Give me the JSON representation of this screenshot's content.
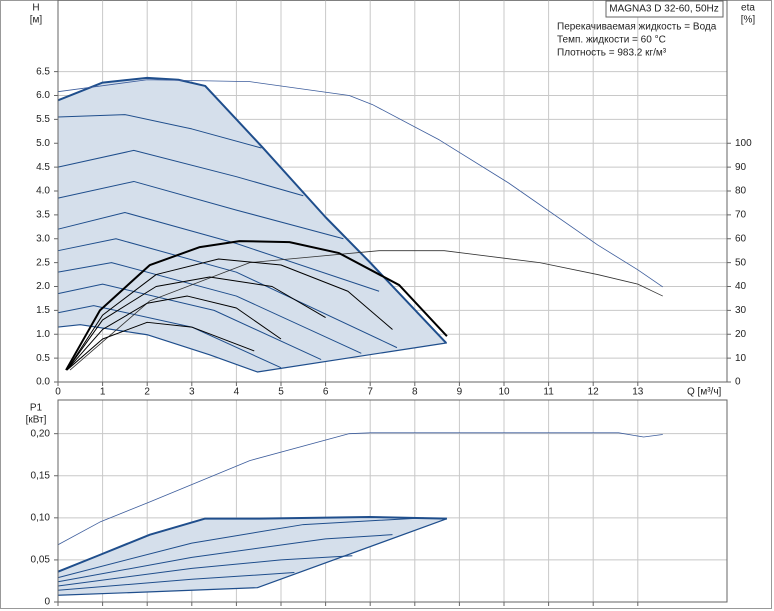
{
  "chart_data": [
    {
      "type": "line",
      "y_label": "H",
      "y_unit": "[м]",
      "y2_label": "eta",
      "y2_unit": "[%]",
      "x_label": "Q [м³/ч]",
      "legend_box": "MAGNA3 D 32-60, 50Hz",
      "annotations": [
        "Перекачиваемая жидкость = Вода",
        "Темп. жидкости = 60 °C",
        "Плотность = 983.2 кг/м³"
      ],
      "xlim": [
        0,
        15
      ],
      "xticks": [
        0,
        1,
        2,
        3,
        4,
        5,
        6,
        7,
        8,
        9,
        10,
        11,
        12,
        13
      ],
      "ylim": [
        0,
        8
      ],
      "yticks": [
        {
          "value": 0,
          "label": "0.0"
        },
        0.5,
        {
          "value": 1,
          "label": "1.0"
        },
        1.5,
        {
          "value": 2,
          "label": "2.0"
        },
        2.5,
        {
          "value": 3,
          "label": "3.0"
        },
        3.5,
        {
          "value": 4,
          "label": "4.0"
        },
        4.5,
        {
          "value": 5,
          "label": "5.0"
        },
        5.5,
        {
          "value": 6,
          "label": "6.0"
        },
        6.5
      ],
      "y2lim": [
        0,
        160
      ],
      "y2ticks": [
        0,
        10,
        20,
        30,
        40,
        50,
        60,
        70,
        80,
        90,
        100
      ],
      "grid": true,
      "shading_color": "#d5dfeb",
      "series": [
        {
          "color": "#1f4e8c",
          "linewidth": 2,
          "bound": "upper",
          "x": [
            0,
            1,
            2,
            2.7,
            3.3,
            4.6,
            6,
            7,
            8.7
          ],
          "values": [
            5.9,
            6.27,
            6.37,
            6.33,
            6.2,
            4.9,
            3.45,
            2.5,
            0.82
          ]
        },
        {
          "color": "#1f4e8c",
          "linewidth": 1.2,
          "bound": "lower",
          "x": [
            0,
            0.5,
            2,
            3.4,
            4.47,
            8.72
          ],
          "values": [
            1.15,
            1.2,
            0.99,
            0.57,
            0.21,
            0.82
          ]
        },
        {
          "color": "#3d5d9c",
          "linewidth": 0.8,
          "x": [
            0,
            2,
            4.3,
            6.53,
            7.05,
            8.55,
            10.1,
            12.1,
            13,
            13.56
          ],
          "values": [
            6.08,
            6.33,
            6.29,
            6.0,
            5.81,
            5.07,
            4.17,
            2.87,
            2.35,
            1.99
          ]
        },
        {
          "color": "#1f4e8c",
          "linewidth": 1,
          "x": [
            0,
            1.5,
            3,
            4.56
          ],
          "values": [
            5.55,
            5.6,
            5.3,
            4.9
          ]
        },
        {
          "color": "#1f4e8c",
          "linewidth": 1,
          "x": [
            0,
            1.7,
            4,
            5.5
          ],
          "values": [
            4.5,
            4.85,
            4.3,
            3.9
          ]
        },
        {
          "color": "#1f4e8c",
          "linewidth": 1,
          "x": [
            0,
            1.7,
            4,
            6.4
          ],
          "values": [
            3.85,
            4.2,
            3.6,
            3.0
          ]
        },
        {
          "color": "#1f4e8c",
          "linewidth": 1,
          "x": [
            0,
            1.5,
            4,
            7.2
          ],
          "values": [
            3.2,
            3.55,
            2.9,
            1.9
          ]
        },
        {
          "color": "#1f4e8c",
          "linewidth": 1,
          "x": [
            0,
            1.3,
            4,
            7.6
          ],
          "values": [
            2.75,
            3.0,
            2.3,
            0.72
          ]
        },
        {
          "color": "#1f4e8c",
          "linewidth": 1,
          "x": [
            0,
            1.2,
            4,
            6.8
          ],
          "values": [
            2.3,
            2.5,
            1.8,
            0.6
          ]
        },
        {
          "color": "#1f4e8c",
          "linewidth": 1,
          "x": [
            0,
            1,
            3.5,
            5.9
          ],
          "values": [
            1.85,
            2.05,
            1.5,
            0.47
          ]
        },
        {
          "color": "#1f4e8c",
          "linewidth": 1,
          "x": [
            0,
            0.8,
            3,
            5
          ],
          "values": [
            1.45,
            1.6,
            1.15,
            0.3
          ]
        },
        {
          "color": "#333333",
          "linewidth": 0.8,
          "axis": "y2",
          "x": [
            0.27,
            2.06,
            4.3,
            7.2,
            8.66,
            10.8,
            12.1,
            13,
            13.56
          ],
          "values": [
            5,
            34,
            50,
            55,
            55,
            50,
            45,
            41,
            36
          ]
        },
        {
          "color": "#000000",
          "linewidth": 2,
          "axis": "y2",
          "x": [
            0.18,
            0.94,
            2.06,
            3.18,
            4.07,
            5.19,
            6.3,
            7.65,
            8.72
          ],
          "values": [
            5,
            30,
            49,
            56.5,
            59,
            58.6,
            54,
            40.6,
            19.2
          ]
        },
        {
          "color": "#000000",
          "linewidth": 1,
          "axis": "y2",
          "x": [
            0.2,
            1,
            2.2,
            3.6,
            5,
            6.5,
            7.5
          ],
          "values": [
            5,
            28,
            45,
            51.5,
            49,
            38,
            22
          ]
        },
        {
          "color": "#000000",
          "linewidth": 1,
          "axis": "y2",
          "x": [
            0.2,
            1,
            2.2,
            3.4,
            4.8,
            6
          ],
          "values": [
            5,
            26,
            40,
            44,
            40,
            27
          ]
        },
        {
          "color": "#000000",
          "linewidth": 1,
          "axis": "y2",
          "x": [
            0.2,
            1,
            2,
            2.9,
            4,
            5
          ],
          "values": [
            5,
            22,
            33,
            36,
            31,
            18
          ]
        },
        {
          "color": "#000000",
          "linewidth": 1,
          "axis": "y2",
          "x": [
            0.2,
            1,
            2,
            3,
            4.4
          ],
          "values": [
            5,
            18,
            25,
            23,
            13
          ]
        }
      ]
    },
    {
      "type": "line",
      "y_label": "P1",
      "y_unit": "[кВт]",
      "xlim": [
        0,
        15
      ],
      "xticks": [
        0,
        1,
        2,
        3,
        4,
        5,
        6,
        7,
        8,
        9,
        10,
        11,
        12,
        13
      ],
      "ylim": [
        0,
        0.24
      ],
      "yticks": [
        0,
        {
          "value": 0.05,
          "label": "0,05"
        },
        {
          "value": 0.1,
          "label": "0,10"
        },
        {
          "value": 0.15,
          "label": "0,15"
        },
        {
          "value": 0.2,
          "label": "0,20"
        }
      ],
      "grid": true,
      "shading_color": "#d5dfeb",
      "series": [
        {
          "color": "#1f4e8c",
          "linewidth": 2,
          "bound": "upper",
          "x": [
            0,
            0.94,
            2.06,
            3.29,
            4.52,
            6.98,
            8.72
          ],
          "values": [
            0.036,
            0.056,
            0.08,
            0.099,
            0.099,
            0.101,
            0.099
          ]
        },
        {
          "color": "#1f4e8c",
          "linewidth": 1.2,
          "bound": "lower",
          "x": [
            0,
            2.06,
            4.47,
            8.72
          ],
          "values": [
            0.008,
            0.012,
            0.017,
            0.099
          ]
        },
        {
          "color": "#3d5d9c",
          "linewidth": 0.8,
          "x": [
            0,
            0.94,
            2.06,
            4.3,
            6.53,
            7.02,
            12.57,
            13.13,
            13.56
          ],
          "values": [
            0.068,
            0.095,
            0.119,
            0.168,
            0.2,
            0.201,
            0.201,
            0.196,
            0.199
          ]
        },
        {
          "color": "#1f4e8c",
          "linewidth": 1,
          "x": [
            0,
            3,
            5.5,
            8.2
          ],
          "values": [
            0.029,
            0.07,
            0.092,
            0.1
          ]
        },
        {
          "color": "#1f4e8c",
          "linewidth": 1,
          "x": [
            0,
            3,
            6,
            7.5
          ],
          "values": [
            0.024,
            0.053,
            0.075,
            0.08
          ]
        },
        {
          "color": "#1f4e8c",
          "linewidth": 1,
          "x": [
            0,
            3,
            5,
            6.6
          ],
          "values": [
            0.019,
            0.04,
            0.05,
            0.055
          ]
        },
        {
          "color": "#1f4e8c",
          "linewidth": 1,
          "x": [
            0,
            3,
            5.3
          ],
          "values": [
            0.014,
            0.027,
            0.035
          ]
        }
      ]
    }
  ]
}
